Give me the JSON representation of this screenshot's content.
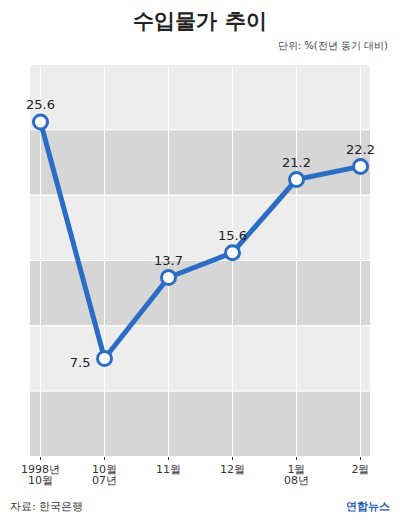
{
  "chart_data": {
    "type": "line",
    "title": "수입물가 추이",
    "subtitle": "단위: %(전년 동기 대비)",
    "source": "자료: 한국은행",
    "credit": "연합뉴스",
    "categories": [
      "1998년\n10월",
      "10월\n07년",
      "11월",
      "12월",
      "1월\n08년",
      "2월"
    ],
    "values": [
      25.6,
      7.5,
      13.7,
      15.6,
      21.2,
      22.2
    ],
    "color": "#2b6cc4",
    "marker": "circle",
    "ylim": [
      0,
      30
    ],
    "yticks": [
      0,
      5,
      10,
      15,
      20,
      25,
      30
    ],
    "grid": true,
    "data_labels": true,
    "tick_labels": "x"
  }
}
